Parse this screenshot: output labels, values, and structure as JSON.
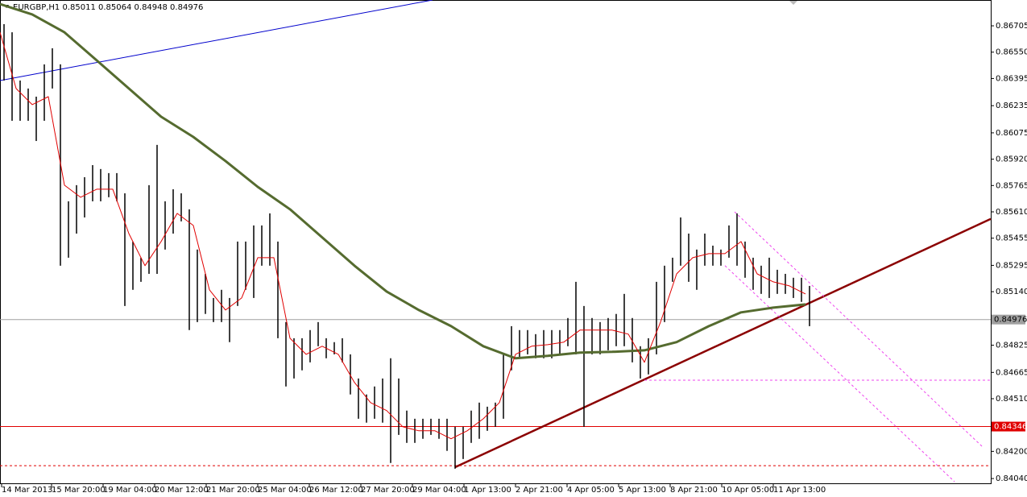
{
  "chart_data": {
    "type": "ohlc",
    "title": "EURGBP,H1  0.85011 0.85064 0.84948 0.84976",
    "color": "#000000",
    "xlim": [
      0,
      615
    ],
    "ylim": [
      0.84012,
      0.86857
    ],
    "x": [
      2.5,
      7.5,
      12.5,
      17.5,
      22.5,
      27.5,
      32.5,
      37.5,
      42.5,
      47.5,
      52.5,
      57.5,
      62.5,
      67.5,
      72.5,
      77.5,
      82.5,
      87.5,
      92.5,
      97.5,
      102.5,
      107.5,
      112.5,
      117.5,
      122.5,
      127.5,
      132.5,
      137.5,
      142.5,
      147.5,
      152.5,
      157.5,
      162.5,
      167.5,
      172.5,
      177.5,
      182.5,
      187.5,
      192.5,
      197.5,
      202.5,
      207.5,
      212.5,
      217.5,
      222.5,
      227.5,
      232.5,
      237.5,
      242.5,
      247.5,
      252.5,
      257.5,
      262.5,
      267.5,
      272.5,
      277.5,
      282.5,
      287.5,
      292.5,
      297.5,
      302.5,
      307.5,
      312.5,
      317.5,
      322.5,
      327.5,
      332.5,
      337.5,
      342.5,
      347.5,
      352.5,
      357.5,
      362.5,
      367.5,
      372.5,
      377.5,
      382.5,
      387.5,
      392.5,
      397.5,
      402.5,
      407.5,
      412.5,
      417.5,
      422.5,
      427.5,
      432.5,
      437.5,
      442.5,
      447.5,
      452.5,
      457.5,
      462.5,
      467.5,
      472.5,
      477.5,
      482.5,
      487.5,
      492.5,
      497.5,
      502.5
    ],
    "high": [
      0.86715,
      0.86667,
      0.86383,
      0.86336,
      0.86288,
      0.86478,
      0.86573,
      0.86478,
      0.85672,
      0.85767,
      0.85814,
      0.85885,
      0.85862,
      0.85838,
      0.85838,
      0.85719,
      0.85435,
      0.8534,
      0.85767,
      0.86004,
      0.85672,
      0.85743,
      0.85719,
      0.85625,
      0.85388,
      0.85245,
      0.85103,
      0.85151,
      0.85103,
      0.85435,
      0.85435,
      0.8553,
      0.8553,
      0.85601,
      0.85435,
      0.84961,
      0.84866,
      0.84866,
      0.84914,
      0.84961,
      0.84866,
      0.84843,
      0.84866,
      0.84771,
      0.84629,
      0.84535,
      0.84582,
      0.84629,
      0.84748,
      0.84629,
      0.8444,
      0.84392,
      0.84392,
      0.84392,
      0.84392,
      0.84392,
      0.84345,
      0.84345,
      0.8444,
      0.84487,
      0.84463,
      0.84487,
      0.84771,
      0.84937,
      0.84914,
      0.84914,
      0.8489,
      0.84914,
      0.84914,
      0.84914,
      0.84985,
      0.85198,
      0.85056,
      0.84985,
      0.84961,
      0.84985,
      0.85009,
      0.85127,
      0.84985,
      0.84819,
      0.84866,
      0.85198,
      0.85293,
      0.8534,
      0.85577,
      0.85482,
      0.85388,
      0.85482,
      0.85411,
      0.85388,
      0.8553,
      0.85601,
      0.85435,
      0.8534,
      0.85293,
      0.8534,
      0.85269,
      0.85245,
      0.85222,
      0.85222,
      0.85174
    ],
    "low": [
      0.86383,
      0.86146,
      0.86146,
      0.86146,
      0.86027,
      0.86146,
      0.86336,
      0.85293,
      0.8534,
      0.85482,
      0.85577,
      0.85672,
      0.85672,
      0.85696,
      0.85672,
      0.85056,
      0.85151,
      0.85198,
      0.85245,
      0.85245,
      0.85388,
      0.85482,
      0.85554,
      0.84914,
      0.84961,
      0.85009,
      0.84961,
      0.84961,
      0.84843,
      0.85056,
      0.85151,
      0.85103,
      0.85293,
      0.85293,
      0.84866,
      0.84582,
      0.84629,
      0.84677,
      0.84724,
      0.84819,
      0.84748,
      0.84771,
      0.84724,
      0.84535,
      0.84392,
      0.84369,
      0.84392,
      0.84369,
      0.84132,
      0.84297,
      0.8425,
      0.8425,
      0.84274,
      0.84297,
      0.84274,
      0.84203,
      0.84098,
      0.84155,
      0.8425,
      0.84274,
      0.84321,
      0.84345,
      0.84392,
      0.84677,
      0.84748,
      0.84771,
      0.84748,
      0.84748,
      0.84748,
      0.84771,
      0.84819,
      0.84771,
      0.84345,
      0.84771,
      0.84771,
      0.84795,
      0.84819,
      0.84819,
      0.84724,
      0.84629,
      0.84653,
      0.84771,
      0.84961,
      0.85198,
      0.85293,
      0.85198,
      0.85151,
      0.85293,
      0.85293,
      0.85293,
      0.8534,
      0.85293,
      0.85222,
      0.85151,
      0.85127,
      0.85103,
      0.85127,
      0.85127,
      0.85103,
      0.8508,
      0.84937
    ],
    "lines": [
      {
        "color": "#556b2f",
        "width": 3,
        "x": [
          0,
          20,
          40,
          60,
          80,
          100,
          120,
          140,
          160,
          180,
          200,
          220,
          240,
          260,
          280,
          300,
          320,
          340,
          360,
          380,
          400,
          420,
          440,
          460,
          480,
          500
        ],
        "values": [
          0.86833,
          0.86772,
          0.86667,
          0.86502,
          0.86336,
          0.8617,
          0.86051,
          0.85909,
          0.85757,
          0.85625,
          0.85459,
          0.85293,
          0.85141,
          0.85032,
          0.84937,
          0.84819,
          0.84748,
          0.84762,
          0.84781,
          0.84786,
          0.84795,
          0.84843,
          0.84937,
          0.85018,
          0.85046,
          0.85065
        ]
      },
      {
        "color": "#e00000",
        "width": 1,
        "x": [
          0,
          10,
          20,
          30,
          40,
          50,
          60,
          70,
          80,
          90,
          100,
          110,
          120,
          130,
          140,
          150,
          160,
          170,
          180,
          190,
          200,
          210,
          220,
          230,
          240,
          250,
          260,
          270,
          280,
          290,
          300,
          310,
          320,
          330,
          340,
          350,
          360,
          370,
          380,
          390,
          400,
          410,
          420,
          430,
          440,
          450,
          460,
          470,
          480,
          490,
          500
        ],
        "values": [
          0.86667,
          0.86336,
          0.86241,
          0.86288,
          0.85767,
          0.85696,
          0.85743,
          0.85743,
          0.85482,
          0.85293,
          0.85435,
          0.85601,
          0.8553,
          0.85151,
          0.85032,
          0.85103,
          0.8534,
          0.8534,
          0.84866,
          0.84771,
          0.84819,
          0.84771,
          0.84606,
          0.84487,
          0.8444,
          0.84345,
          0.84321,
          0.84321,
          0.84274,
          0.84321,
          0.84392,
          0.84487,
          0.84771,
          0.84819,
          0.84828,
          0.84843,
          0.84914,
          0.84914,
          0.84914,
          0.8489,
          0.84724,
          0.84961,
          0.85245,
          0.8534,
          0.85364,
          0.85364,
          0.85435,
          0.85245,
          0.85198,
          0.85174,
          0.85127
        ]
      }
    ],
    "trendlines": [
      {
        "color": "#0000cc",
        "width": 1,
        "dash": false,
        "x": [
          0,
          268.5
        ],
        "values": [
          0.86383,
          0.86857
        ]
      },
      {
        "color": "#8b0000",
        "width": 2.5,
        "dash": false,
        "x": [
          282.5,
          615
        ],
        "values": [
          0.84107,
          0.85568
        ]
      },
      {
        "color": "#ee44ee",
        "width": 1,
        "dash": true,
        "x": [
          456,
          610
        ],
        "values": [
          0.8561,
          0.84226
        ]
      },
      {
        "color": "#ee44ee",
        "width": 1,
        "dash": true,
        "x": [
          450,
          592.5
        ],
        "values": [
          0.85293,
          0.84022
        ]
      },
      {
        "color": "#ee44ee",
        "width": 1,
        "dash": true,
        "x": [
          400,
          615
        ],
        "values": [
          0.84619,
          0.84619
        ]
      },
      {
        "color": "#e00000",
        "width": 1,
        "dash": true,
        "x": [
          0,
          615
        ],
        "values": [
          0.84116,
          0.84116
        ]
      }
    ],
    "price_lines": [
      {
        "value": 0.84976,
        "color": "#a0a0a0",
        "text": "#000000"
      },
      {
        "value": 0.84346,
        "color": "#e00000",
        "text": "#ffffff"
      }
    ],
    "yticks": [
      {
        "value": 0.86705,
        "label": "0.86705"
      },
      {
        "value": 0.8655,
        "label": "0.86550"
      },
      {
        "value": 0.86395,
        "label": "0.86395"
      },
      {
        "value": 0.86235,
        "label": "0.86235"
      },
      {
        "value": 0.86075,
        "label": "0.86075"
      },
      {
        "value": 0.8592,
        "label": "0.85920"
      },
      {
        "value": 0.85765,
        "label": "0.85765"
      },
      {
        "value": 0.8561,
        "label": "0.85610"
      },
      {
        "value": 0.85455,
        "label": "0.85455"
      },
      {
        "value": 0.85295,
        "label": "0.85295"
      },
      {
        "value": 0.8514,
        "label": "0.85140"
      },
      {
        "value": 0.84825,
        "label": "0.84825"
      },
      {
        "value": 0.84665,
        "label": "0.84665"
      },
      {
        "value": 0.8451,
        "label": "0.84510"
      },
      {
        "value": 0.842,
        "label": "0.84200"
      },
      {
        "value": 0.8404,
        "label": "0.84040"
      }
    ],
    "xticks": [
      {
        "value": 1,
        "label": "14 Mar 2013"
      },
      {
        "value": 32,
        "label": "15 Mar 20:00"
      },
      {
        "value": 64,
        "label": "19 Mar 04:00"
      },
      {
        "value": 96,
        "label": "20 Mar 12:00"
      },
      {
        "value": 128,
        "label": "21 Mar 20:00"
      },
      {
        "value": 160,
        "label": "25 Mar 04:00"
      },
      {
        "value": 192,
        "label": "26 Mar 12:00"
      },
      {
        "value": 224,
        "label": "27 Mar 20:00"
      },
      {
        "value": 256,
        "label": "29 Mar 04:00"
      },
      {
        "value": 288,
        "label": "1 Apr 13:00"
      },
      {
        "value": 320,
        "label": "2 Apr 21:00"
      },
      {
        "value": 352,
        "label": "4 Apr 05:00"
      },
      {
        "value": 384,
        "label": "5 Apr 13:00"
      },
      {
        "value": 416,
        "label": "8 Apr 21:00"
      },
      {
        "value": 448,
        "label": "10 Apr 05:00"
      },
      {
        "value": 480,
        "label": "11 Apr 13:00"
      }
    ]
  }
}
